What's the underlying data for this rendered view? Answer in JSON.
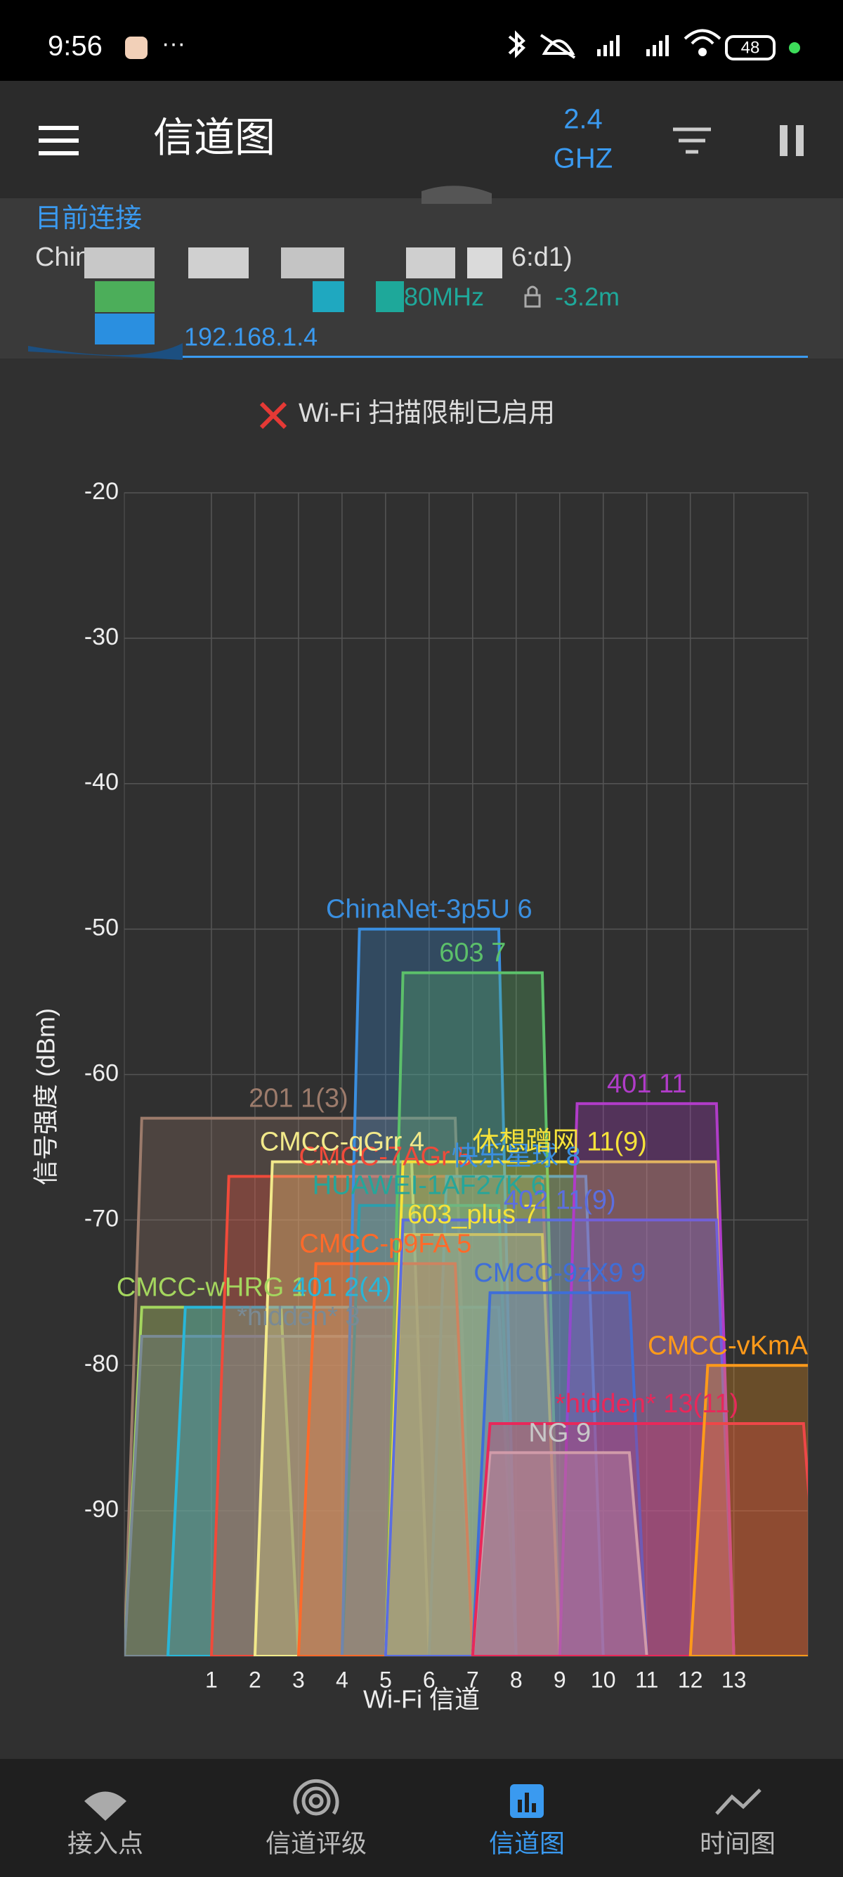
{
  "status_bar": {
    "time": "9:56",
    "more": "···",
    "battery": "48"
  },
  "app_bar": {
    "title": "信道图",
    "band_value": "2.4",
    "band_unit": "GHZ"
  },
  "connection": {
    "heading": "目前连接",
    "ssid_start": "Chin",
    "bssid_end": "6:d1)",
    "width": "80MHz",
    "distance": "-3.2m",
    "ip": "192.168.1.4"
  },
  "warning": "Wi-Fi 扫描限制已启用",
  "chart_data": {
    "type": "wifi-channel",
    "x_label": "Wi-Fi 信道",
    "y_label": "信号强度 (dBm)",
    "xlim": [
      -1,
      14.7
    ],
    "xticks": [
      1,
      2,
      3,
      4,
      5,
      6,
      7,
      8,
      9,
      10,
      11,
      12,
      13
    ],
    "ylim": [
      -100,
      -20
    ],
    "yticks": [
      -20,
      -30,
      -40,
      -50,
      -60,
      -70,
      -80,
      -90
    ],
    "grid": true,
    "series": [
      {
        "name": "201 1(3)",
        "color": "#9c7b6b",
        "x": 3,
        "width": 8,
        "value": -63
      },
      {
        "name": "CMCC-wHRG 1",
        "color": "#a4d65e",
        "x": 1,
        "width": 4,
        "value": -76
      },
      {
        "name": "*hidden* 3",
        "color": "#7a8a94",
        "x": 3,
        "width": 8,
        "value": -78
      },
      {
        "name": "401 2(4)",
        "color": "#29b6d8",
        "x": 4,
        "width": 8,
        "value": -76
      },
      {
        "name": "CMCC-7AGr 5",
        "color": "#f04a3a",
        "x": 5,
        "width": 8,
        "value": -67
      },
      {
        "name": "CMCC-qGrr 4",
        "color": "#f2e98a",
        "x": 4,
        "width": 4,
        "value": -66
      },
      {
        "name": "快乐星球 8",
        "color": "#3a8fe0",
        "x": 8,
        "width": 4,
        "value": -67
      },
      {
        "name": "HUAWEI-1AF27K 6",
        "color": "#26a69a",
        "x": 6,
        "width": 4,
        "value": -69
      },
      {
        "name": "ChinaNet-3p5U 6",
        "color": "#3a8fe0",
        "x": 6,
        "width": 4,
        "value": -50
      },
      {
        "name": "603 7",
        "color": "#5cc06a",
        "x": 7,
        "width": 4,
        "value": -53
      },
      {
        "name": "603_plus 7",
        "color": "#f5e23a",
        "x": 7,
        "width": 4,
        "value": -71
      },
      {
        "name": "CMCC-p9FA 5",
        "color": "#ff6a2a",
        "x": 5,
        "width": 4,
        "value": -73
      },
      {
        "name": "休想蹭网 11(9)",
        "color": "#f5e23a",
        "x": 9,
        "width": 8,
        "value": -66
      },
      {
        "name": "402 11(9)",
        "color": "#5b6ee0",
        "x": 9,
        "width": 8,
        "value": -70
      },
      {
        "name": "401 11",
        "color": "#b03cc8",
        "x": 11,
        "width": 4,
        "value": -62
      },
      {
        "name": "CMCC-9zX9 9",
        "color": "#3f6ed8",
        "x": 9,
        "width": 4,
        "value": -75
      },
      {
        "name": "NG 9",
        "color": "#c8c8c8",
        "x": 9,
        "width": 4,
        "value": -86
      },
      {
        "name": "*hidden* 13(11)",
        "color": "#e8285a",
        "x": 11,
        "width": 8,
        "value": -84
      },
      {
        "name": "CMCC-vKmA",
        "color": "#ff9a1a",
        "x": 14,
        "width": 4,
        "value": -80
      }
    ]
  },
  "nav": [
    "接入点",
    "信道评级",
    "信道图",
    "时间图"
  ]
}
